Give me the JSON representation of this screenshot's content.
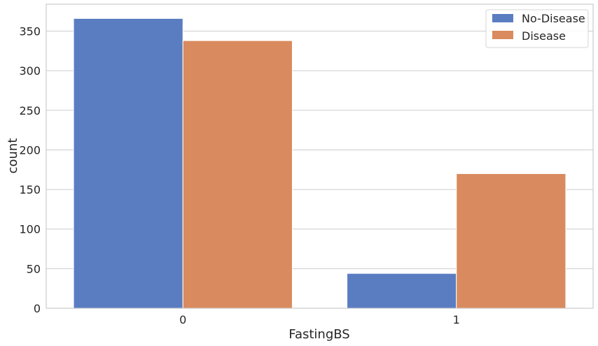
{
  "chart_data": {
    "type": "bar",
    "categories": [
      "0",
      "1"
    ],
    "series": [
      {
        "name": "No-Disease",
        "values": [
          366,
          44
        ],
        "color": "#5a7dc1"
      },
      {
        "name": "Disease",
        "values": [
          338,
          170
        ],
        "color": "#d98a5e"
      }
    ],
    "xlabel": "FastingBS",
    "ylabel": "count",
    "ylim": [
      0,
      384
    ],
    "yticks": [
      0,
      50,
      100,
      150,
      200,
      250,
      300,
      350
    ],
    "grid": true,
    "legend_position": "top-right"
  }
}
